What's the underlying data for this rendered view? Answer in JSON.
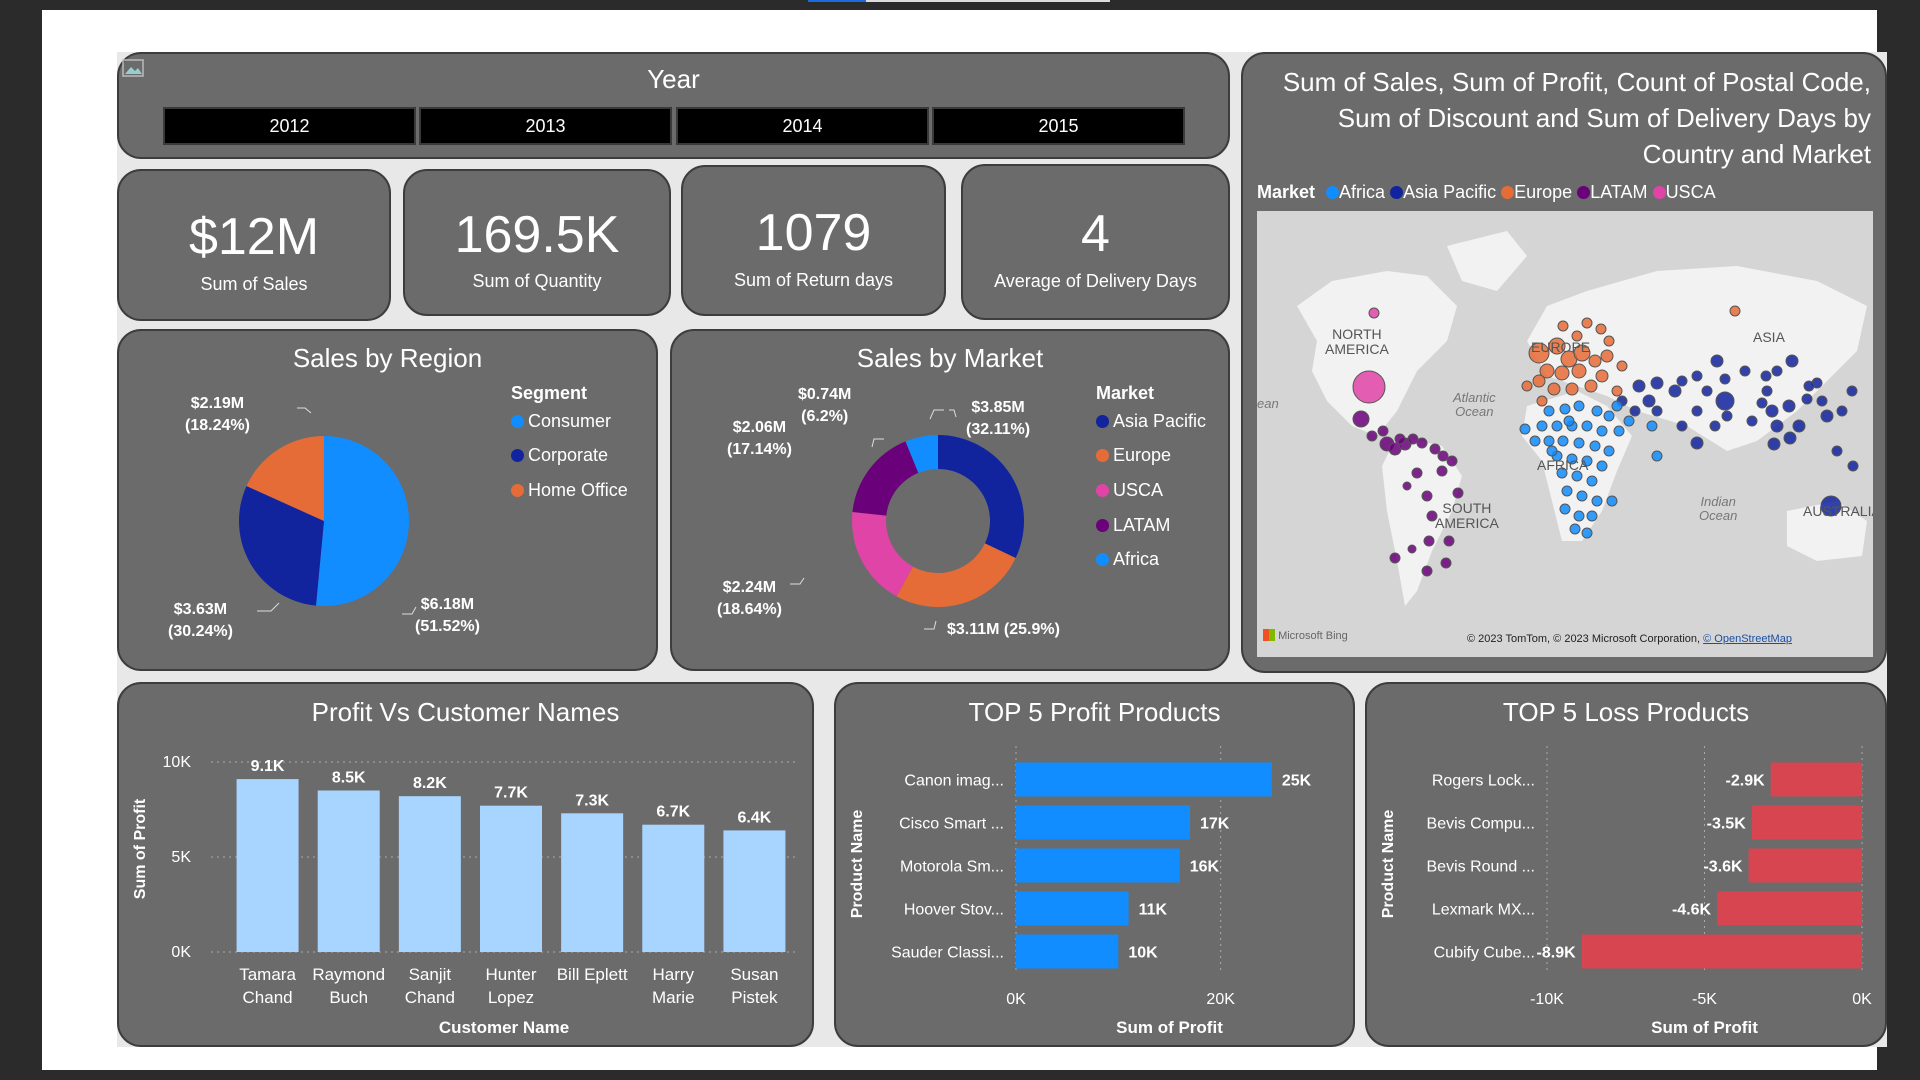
{
  "year_slicer": {
    "title": "Year",
    "options": [
      "2012",
      "2013",
      "2014",
      "2015"
    ]
  },
  "kpis": [
    {
      "value": "$12M",
      "label": "Sum of Sales"
    },
    {
      "value": "169.5K",
      "label": "Sum of Quantity"
    },
    {
      "value": "1079",
      "label": "Sum of Return days"
    },
    {
      "value": "4",
      "label": "Average of Delivery Days"
    }
  ],
  "colors": {
    "card_bg": "#6b6b6b",
    "consumer": "#118dff",
    "corporate": "#12239e",
    "home_office": "#e66c37",
    "asia_pacific": "#12239e",
    "europe": "#e66c37",
    "usca": "#e044a7",
    "latam": "#6b007b",
    "africa": "#118dff",
    "customer_bar": "#a7d5ff",
    "profit_bar": "#118dff",
    "loss_bar": "#d64550"
  },
  "region": {
    "title": "Sales by Region",
    "legend_title": "Segment",
    "legend": [
      "Consumer",
      "Corporate",
      "Home Office"
    ],
    "labels": {
      "consumer": [
        "$6.18M",
        "(51.52%)"
      ],
      "corporate": [
        "$3.63M",
        "(30.24%)"
      ],
      "home_office": [
        "$2.19M",
        "(18.24%)"
      ]
    }
  },
  "market": {
    "title": "Sales by Market",
    "legend_title": "Market",
    "legend": [
      "Asia Pacific",
      "Europe",
      "USCA",
      "LATAM",
      "Africa"
    ],
    "labels": {
      "asia_pacific": [
        "$3.85M",
        "(32.11%)"
      ],
      "europe": "$3.11M (25.9%)",
      "usca": [
        "$2.24M",
        "(18.64%)"
      ],
      "latam": [
        "$2.06M",
        "(17.14%)"
      ],
      "africa": [
        "$0.74M",
        "(6.2%)"
      ]
    }
  },
  "map": {
    "title_lines": [
      "Sum of Sales, Sum of Profit, Count of Postal Code,",
      "Sum of Discount and Sum of Delivery Days by",
      "Country and Market"
    ],
    "legend_title": "Market",
    "legend": [
      "Africa",
      "Asia Pacific",
      "Europe",
      "LATAM",
      "USCA"
    ],
    "places": {
      "north_america_1": "NORTH",
      "north_america_2": "AMERICA",
      "europe": "EUROPE",
      "asia": "ASIA",
      "africa": "AFRICA",
      "south_america_1": "SOUTH",
      "south_america_2": "AMERICA",
      "australia": "AUSTRALIA",
      "atlantic_1": "Atlantic",
      "atlantic_2": "Ocean",
      "indian_1": "Indian",
      "indian_2": "Ocean",
      "ocean_left": "ean"
    },
    "bing_logo": "Microsoft Bing",
    "copyright": "© 2023 TomTom, © 2023 Microsoft Corporation,",
    "osm_link": "© OpenStreetMap"
  },
  "customer_chart": {
    "title": "Profit Vs Customer Names",
    "xlabel": "Customer Name",
    "ylabel": "Sum of Profit",
    "y_ticks": [
      "10K",
      "5K",
      "0K"
    ],
    "names": [
      [
        "Tamara",
        "Chand"
      ],
      [
        "Raymond",
        "Buch"
      ],
      [
        "Sanjit",
        "Chand"
      ],
      [
        "Hunter",
        "Lopez"
      ],
      [
        "Bill Eplett"
      ],
      [
        "Harry",
        "Marie"
      ],
      [
        "Susan",
        "Pistek"
      ]
    ],
    "value_labels": [
      "9.1K",
      "8.5K",
      "8.2K",
      "7.7K",
      "7.3K",
      "6.7K",
      "6.4K"
    ]
  },
  "profit_chart": {
    "title": "TOP 5 Profit Products",
    "xlabel": "Sum of Profit",
    "ylabel": "Product Name",
    "x_ticks": [
      "0K",
      "20K"
    ],
    "products": [
      "Canon imag...",
      "Cisco Smart ...",
      "Motorola Sm...",
      "Hoover Stov...",
      "Sauder Classi..."
    ],
    "value_labels": [
      "25K",
      "17K",
      "16K",
      "11K",
      "10K"
    ]
  },
  "loss_chart": {
    "title": "TOP 5 Loss Products",
    "xlabel": "Sum of Profit",
    "ylabel": "Product Name",
    "x_ticks": [
      "-10K",
      "-5K",
      "0K"
    ],
    "products": [
      "Rogers Lock...",
      "Bevis Compu...",
      "Bevis Round ...",
      "Lexmark MX...",
      "Cubify Cube..."
    ],
    "value_labels": [
      "-2.9K",
      "-3.5K",
      "-3.6K",
      "-4.6K",
      "-8.9K"
    ]
  },
  "chart_data": [
    {
      "type": "pie",
      "title": "Sales by Region",
      "categories": [
        "Consumer",
        "Corporate",
        "Home Office"
      ],
      "values": [
        6.18,
        3.63,
        2.19
      ],
      "percents": [
        51.52,
        30.24,
        18.24
      ]
    },
    {
      "type": "pie",
      "title": "Sales by Market",
      "donut": true,
      "categories": [
        "Asia Pacific",
        "Europe",
        "USCA",
        "LATAM",
        "Africa"
      ],
      "values": [
        3.85,
        3.11,
        2.24,
        2.06,
        0.74
      ],
      "percents": [
        32.11,
        25.9,
        18.64,
        17.14,
        6.2
      ]
    },
    {
      "type": "bar",
      "title": "Profit Vs Customer Names",
      "categories": [
        "Tamara Chand",
        "Raymond Buch",
        "Sanjit Chand",
        "Hunter Lopez",
        "Bill Eplett",
        "Harry Marie",
        "Susan Pistek"
      ],
      "values": [
        9100,
        8500,
        8200,
        7700,
        7300,
        6700,
        6400
      ],
      "xlabel": "Customer Name",
      "ylabel": "Sum of Profit",
      "ylim": [
        0,
        10000
      ]
    },
    {
      "type": "bar",
      "orientation": "horizontal",
      "title": "TOP 5 Profit Products",
      "categories": [
        "Canon imag...",
        "Cisco Smart ...",
        "Motorola Sm...",
        "Hoover Stov...",
        "Sauder Classi..."
      ],
      "values": [
        25000,
        17000,
        16000,
        11000,
        10000
      ],
      "xlabel": "Sum of Profit",
      "ylabel": "Product Name",
      "xlim": [
        0,
        30000
      ]
    },
    {
      "type": "bar",
      "orientation": "horizontal",
      "title": "TOP 5 Loss Products",
      "categories": [
        "Rogers Lock...",
        "Bevis Compu...",
        "Bevis Round ...",
        "Lexmark MX...",
        "Cubify Cube..."
      ],
      "values": [
        -2900,
        -3500,
        -3600,
        -4600,
        -8900
      ],
      "xlabel": "Sum of Profit",
      "ylabel": "Product Name",
      "xlim": [
        -10000,
        0
      ]
    }
  ]
}
